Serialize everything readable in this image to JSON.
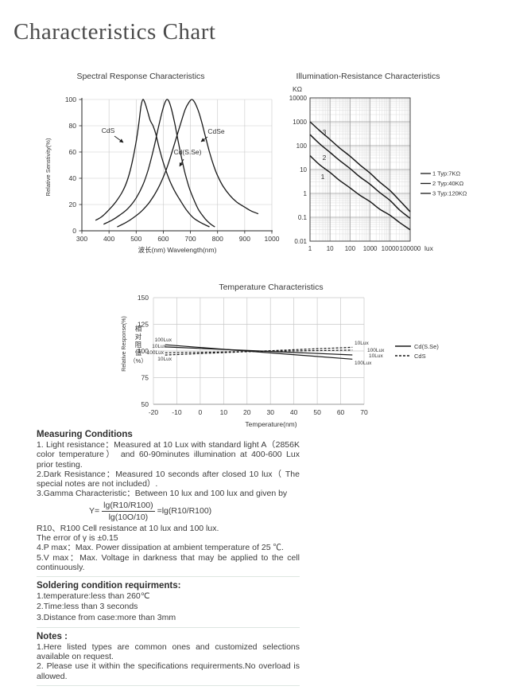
{
  "page": {
    "title": "Characteristics Chart"
  },
  "chart_data": [
    {
      "type": "line",
      "title": "Spectral Response Characteristics",
      "xlabel": "波长(nm)    Wavelength(nm)",
      "ylabel": "Relative Senstivity(%)",
      "xlim": [
        300,
        1000
      ],
      "ylim": [
        0,
        100
      ],
      "xticks": [
        300,
        400,
        500,
        600,
        700,
        800,
        900,
        1000
      ],
      "yticks": [
        0,
        20,
        40,
        60,
        80,
        100
      ],
      "grid": true,
      "series": [
        {
          "name": "CdS",
          "points": [
            [
              350,
              8
            ],
            [
              375,
              11
            ],
            [
              400,
              16
            ],
            [
              425,
              22
            ],
            [
              450,
              30
            ],
            [
              470,
              40
            ],
            [
              485,
              52
            ],
            [
              500,
              68
            ],
            [
              510,
              82
            ],
            [
              518,
              95
            ],
            [
              525,
              100
            ],
            [
              533,
              97
            ],
            [
              542,
              91
            ],
            [
              552,
              84
            ],
            [
              562,
              80
            ],
            [
              572,
              74
            ],
            [
              585,
              63
            ],
            [
              600,
              52
            ],
            [
              620,
              40
            ],
            [
              640,
              31
            ],
            [
              660,
              24
            ],
            [
              685,
              16
            ],
            [
              710,
              10
            ],
            [
              740,
              6
            ],
            [
              770,
              3
            ]
          ]
        },
        {
          "name": "Cd(S.Se)",
          "points": [
            [
              380,
              5
            ],
            [
              410,
              8
            ],
            [
              440,
              12
            ],
            [
              470,
              17
            ],
            [
              500,
              25
            ],
            [
              525,
              35
            ],
            [
              545,
              47
            ],
            [
              565,
              63
            ],
            [
              580,
              77
            ],
            [
              595,
              90
            ],
            [
              605,
              97
            ],
            [
              613,
              100
            ],
            [
              622,
              98
            ],
            [
              632,
              91
            ],
            [
              643,
              81
            ],
            [
              655,
              68
            ],
            [
              668,
              55
            ],
            [
              680,
              44
            ],
            [
              695,
              33
            ],
            [
              710,
              25
            ],
            [
              730,
              16
            ],
            [
              755,
              9
            ],
            [
              775,
              5
            ],
            [
              790,
              3
            ]
          ]
        },
        {
          "name": "CdSe",
          "points": [
            [
              430,
              3
            ],
            [
              460,
              6
            ],
            [
              490,
              10
            ],
            [
              520,
              15
            ],
            [
              550,
              22
            ],
            [
              580,
              32
            ],
            [
              610,
              46
            ],
            [
              635,
              62
            ],
            [
              660,
              79
            ],
            [
              680,
              92
            ],
            [
              695,
              98
            ],
            [
              705,
              100
            ],
            [
              715,
              98
            ],
            [
              728,
              92
            ],
            [
              740,
              84
            ],
            [
              755,
              72
            ],
            [
              770,
              60
            ],
            [
              785,
              50
            ],
            [
              800,
              42
            ],
            [
              820,
              34
            ],
            [
              845,
              27
            ],
            [
              870,
              22
            ],
            [
              900,
              18
            ],
            [
              925,
              15
            ],
            [
              950,
              13
            ]
          ]
        }
      ],
      "annotations": [
        {
          "label": "CdS",
          "tx": 111,
          "ty": 79,
          "x1": 119,
          "y1": 83,
          "x2": 130,
          "y2": 91
        },
        {
          "label": "CdSe",
          "tx": 247,
          "ty": 80,
          "x1": 236,
          "y1": 84,
          "x2": 228,
          "y2": 90
        },
        {
          "label": "Cd(S.Se)",
          "tx": 211,
          "ty": 106,
          "x1": 206,
          "y1": 112,
          "x2": 201,
          "y2": 121
        }
      ]
    },
    {
      "type": "line",
      "scale": "loglog",
      "title": "Illumination-Resistance Characteristics",
      "y_unit": "KΩ",
      "x_unit": "lux",
      "xlim": [
        1,
        100000
      ],
      "ylim": [
        0.01,
        10000
      ],
      "xticks": [
        1,
        10,
        100,
        1000,
        10000,
        100000
      ],
      "yticks": [
        10000,
        1000,
        100,
        10,
        1,
        0.1,
        0.01
      ],
      "grid": true,
      "series": [
        {
          "id": "1",
          "name": "Typ:7KΩ",
          "points": [
            [
              1,
              38
            ],
            [
              3,
              16
            ],
            [
              10,
              7.5
            ],
            [
              30,
              3.5
            ],
            [
              100,
              1.7
            ],
            [
              300,
              0.85
            ],
            [
              1000,
              0.45
            ],
            [
              3000,
              0.22
            ],
            [
              10000,
              0.12
            ],
            [
              30000,
              0.06
            ],
            [
              100000,
              0.03
            ]
          ]
        },
        {
          "id": "2",
          "name": "Typ:40KΩ",
          "points": [
            [
              1,
              290
            ],
            [
              3,
              120
            ],
            [
              10,
              52
            ],
            [
              30,
              24
            ],
            [
              100,
              11
            ],
            [
              300,
              5
            ],
            [
              1000,
              2.4
            ],
            [
              3000,
              1.1
            ],
            [
              10000,
              0.5
            ],
            [
              30000,
              0.2
            ],
            [
              100000,
              0.09
            ]
          ]
        },
        {
          "id": "3",
          "name": "Typ:120KΩ",
          "points": [
            [
              1,
              1000
            ],
            [
              3,
              430
            ],
            [
              10,
              180
            ],
            [
              30,
              80
            ],
            [
              100,
              36
            ],
            [
              300,
              16
            ],
            [
              1000,
              7
            ],
            [
              3000,
              3
            ],
            [
              10000,
              1.3
            ],
            [
              30000,
              0.5
            ],
            [
              100000,
              0.17
            ]
          ]
        }
      ],
      "curve_labels": [
        {
          "text": "3",
          "x": 58,
          "y": 81
        },
        {
          "text": "2",
          "x": 58,
          "y": 113
        },
        {
          "text": "1",
          "x": 56,
          "y": 137
        }
      ],
      "legend": [
        {
          "id": "1",
          "label": "Typ:7KΩ"
        },
        {
          "id": "2",
          "label": "Typ:40KΩ"
        },
        {
          "id": "3",
          "label": "Typ:120KΩ"
        }
      ],
      "legend_position": "right"
    },
    {
      "type": "line",
      "title": "Temperature Characteristics",
      "xlabel": "Temperature(nm)",
      "ylabel": "Relative Response(%)",
      "ylabel_cn": "相对阻值",
      "ylabel_cn_suffix": "（%）",
      "xlim": [
        -20,
        70
      ],
      "ylim": [
        50,
        150
      ],
      "xticks": [
        -20,
        -10,
        0,
        10,
        20,
        30,
        40,
        50,
        60,
        70
      ],
      "yticks": [
        50,
        75,
        100,
        125,
        150
      ],
      "grid": true,
      "series": [
        {
          "name": "Cd(S.Se) 100Lux",
          "style": "solid",
          "points": [
            [
              -15,
              105.8
            ],
            [
              65,
              92.3
            ]
          ]
        },
        {
          "name": "Cd(S.Se) 10Lux",
          "style": "solid",
          "points": [
            [
              -15,
              103.8
            ],
            [
              65,
              96.3
            ]
          ]
        },
        {
          "name": "CdS 100Lux",
          "style": "dashed",
          "points": [
            [
              -15,
              98.3
            ],
            [
              65,
              100.8
            ]
          ]
        },
        {
          "name": "CdS 10Lux",
          "style": "dashed",
          "points": [
            [
              -15,
              96.2
            ],
            [
              65,
              103.4
            ]
          ]
        }
      ],
      "line_labels": [
        {
          "text": "100Lux",
          "x": 151,
          "y": 79,
          "anchor": "end"
        },
        {
          "text": "10Lux",
          "x": 144,
          "y": 87,
          "anchor": "end"
        },
        {
          "text": "100Lux",
          "x": 141,
          "y": 95,
          "anchor": "end"
        },
        {
          "text": "10Lux",
          "x": 151,
          "y": 103,
          "anchor": "end"
        },
        {
          "text": "10Lux",
          "x": 381,
          "y": 83,
          "anchor": "start"
        },
        {
          "text": "100Lux",
          "x": 397,
          "y": 92,
          "anchor": "start"
        },
        {
          "text": "10Lux",
          "x": 399,
          "y": 99,
          "anchor": "start"
        },
        {
          "text": "100Lux",
          "x": 381,
          "y": 108,
          "anchor": "start"
        }
      ],
      "legend": [
        {
          "label": "Cd(S.Se)",
          "style": "solid"
        },
        {
          "label": "CdS",
          "style": "dashed"
        }
      ],
      "legend_position": "right"
    }
  ],
  "sections": {
    "measuring": {
      "heading": "Measuring Conditions",
      "items": [
        "1. Light resistance：Measured at 10 Lux with standard light A（2856K color temperature） and 60-90minutes illumination at 400-600 Lux prior testing.",
        "2.Dark Resistance：Measured 10 seconds after closed 10 lux（ The special notes are not included）.",
        "3.Gamma Characteristic：Between 10 lux and 100 lux and given by",
        "R10、R100 Cell resistance at 10 lux and 100 lux.",
        "The error of γ is ±0.15",
        "4.P max：Max. Power dissipation at ambient temperature of 25 ℃.",
        "5.V max：Max. Voltage in darkness that may be applied to the cell continuously."
      ],
      "formula": {
        "lhs": "Y=",
        "numerator": "lg(R10/R100)",
        "denominator": "lg(10O/10)",
        "rhs": "=lg(R10/R100)"
      }
    },
    "soldering": {
      "heading": "Soldering condition requirments:",
      "items": [
        "1.temperature:less than 260℃",
        "2.Time:less than 3 seconds",
        "3.Distance from case:more than 3mm"
      ]
    },
    "notes": {
      "heading": "Notes :",
      "items": [
        "1.Here listed types are common ones and customized selections available on request.",
        "2. Please use it within the specifications requirerments.No overload is allowed."
      ]
    }
  },
  "colors": {
    "curve": "#1a1a1a",
    "grid_light": "#c9c9c9",
    "grid_minor": "#dcdcdc",
    "grid_major": "#9a9a9a",
    "axis": "#222222",
    "divider": "#dde6e1",
    "title": "#4b4b4b",
    "text": "#3b3b3b"
  }
}
